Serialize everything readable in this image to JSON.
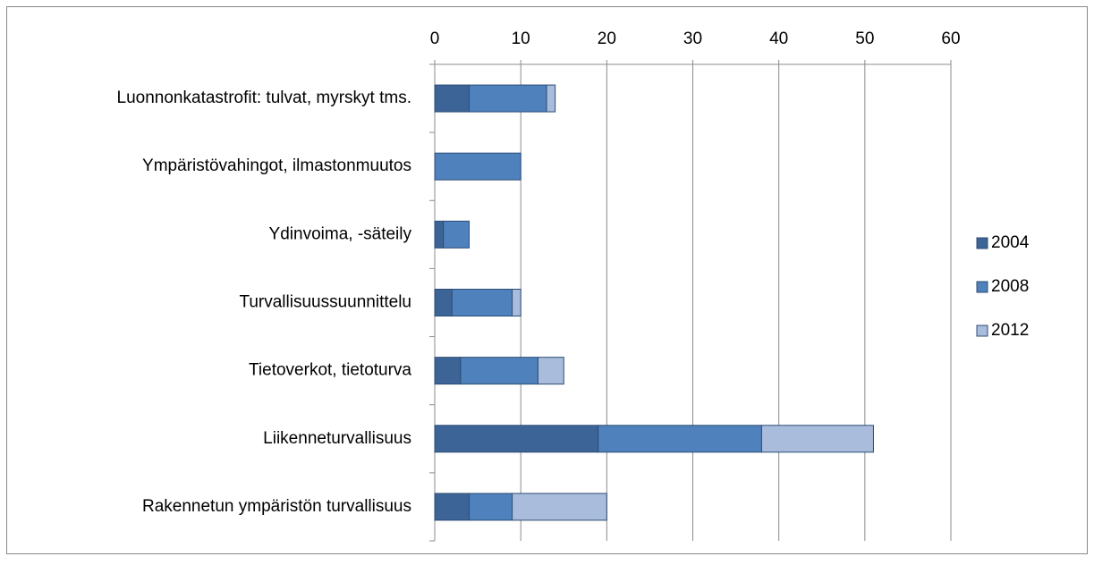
{
  "chart_data": {
    "type": "stacked_bar_horizontal",
    "categories": [
      "Luonnonkatastrofit: tulvat, myrskyt tms.",
      "Ympäristövahingot, ilmastonmuutos",
      "Ydinvoima, -säteily",
      "Turvallisuussuunnittelu",
      "Tietoverkot, tietoturva",
      "Liikenneturvallisuus",
      "Rakennetun ympäristön turvallisuus"
    ],
    "series": [
      {
        "name": "2004",
        "color": "#3d6496",
        "values": [
          4,
          0,
          1,
          2,
          3,
          19,
          4
        ]
      },
      {
        "name": "2008",
        "color": "#4f81bd",
        "values": [
          9,
          10,
          3,
          7,
          9,
          19,
          5
        ]
      },
      {
        "name": "2012",
        "color": "#a9bcdb",
        "values": [
          1,
          0,
          0,
          1,
          3,
          13,
          11
        ]
      }
    ],
    "xlim": [
      0,
      60
    ],
    "xticks": [
      0,
      10,
      20,
      30,
      40,
      50,
      60
    ],
    "grid": true,
    "legend": "right"
  }
}
